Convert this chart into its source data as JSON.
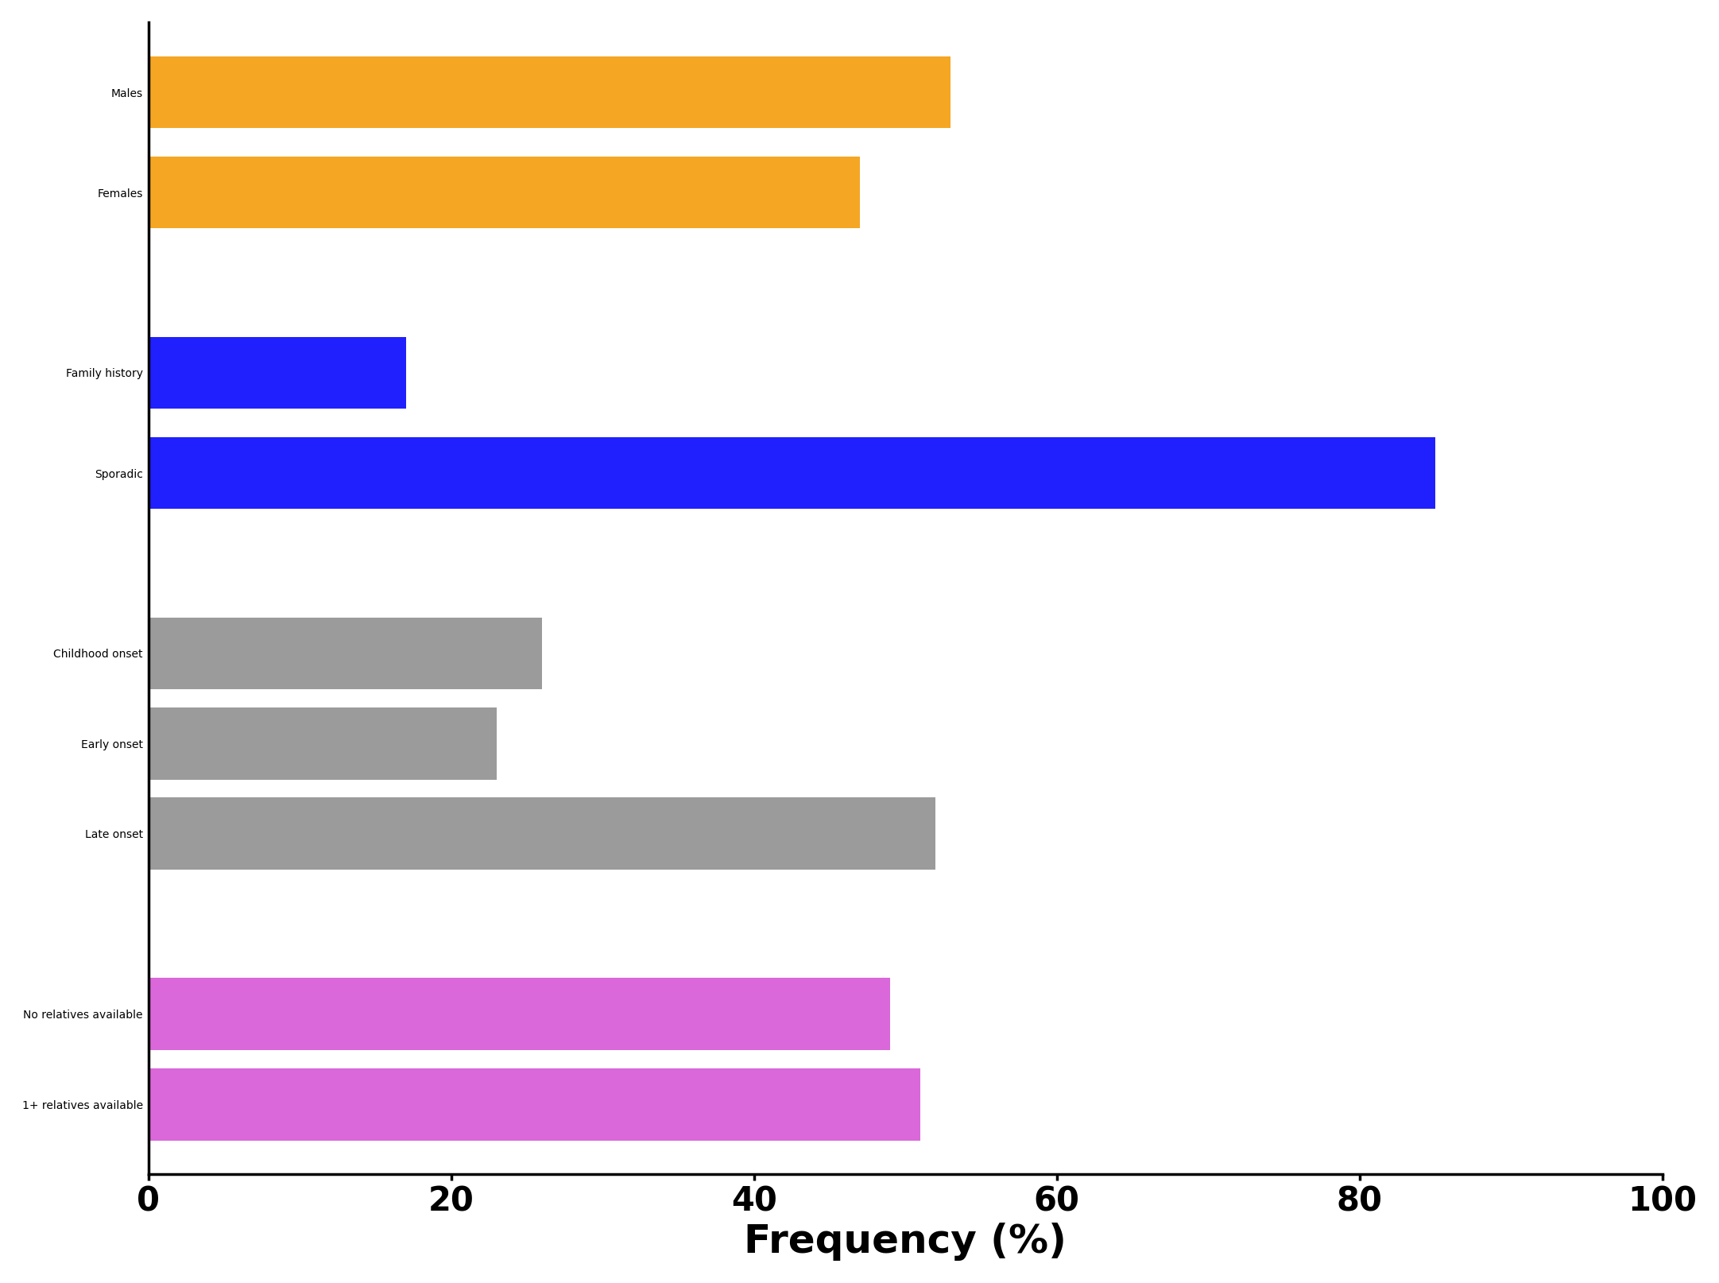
{
  "categories": [
    "Males",
    "Females",
    "Family history",
    "Sporadic",
    "Childhood onset",
    "Early onset",
    "Late onset",
    "No relatives available",
    "1+ relatives available"
  ],
  "values": [
    53,
    47,
    17,
    85,
    26,
    23,
    52,
    49,
    51
  ],
  "colors": [
    "#F5A623",
    "#F5A623",
    "#2020FF",
    "#2020FF",
    "#9B9B9B",
    "#9B9B9B",
    "#9B9B9B",
    "#DA68DA",
    "#DA68DA"
  ],
  "xlabel": "Frequency (%)",
  "xlim": [
    0,
    100
  ],
  "xticks": [
    0,
    20,
    40,
    60,
    80,
    100
  ],
  "bar_height": 0.72,
  "xlabel_fontsize": 36,
  "tick_fontsize": 30,
  "label_fontsize": 32,
  "background_color": "#ffffff",
  "cat_positions": [
    10.4,
    9.4,
    7.6,
    6.6,
    4.8,
    3.9,
    3.0,
    1.2,
    0.3
  ],
  "ylim_min": -0.4,
  "ylim_max": 11.1
}
